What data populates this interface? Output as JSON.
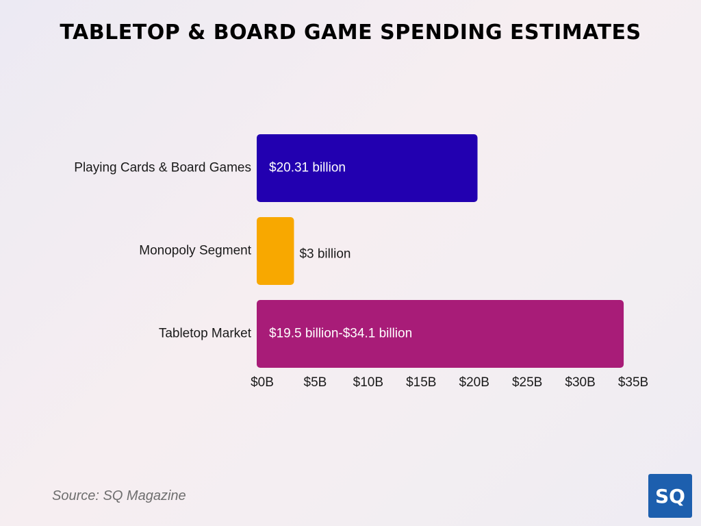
{
  "title": "TABLETOP & BOARD GAME SPENDING ESTIMATES",
  "source": "Source: SQ Magazine",
  "logo_text": "SQ",
  "chart_data": {
    "type": "bar",
    "orientation": "horizontal",
    "categories": [
      "Playing Cards & Board Games",
      "Monopoly Segment",
      "Tabletop Market"
    ],
    "values": [
      20.31,
      3,
      34.1
    ],
    "range_start": [
      null,
      null,
      19.5
    ],
    "data_labels": [
      "$20.31 billion",
      "$3 billion",
      "$19.5 billion-$34.1 billion"
    ],
    "label_inside": [
      true,
      false,
      true
    ],
    "colors": [
      "#2200b0",
      "#f8a800",
      "#a81c78"
    ],
    "xlim": [
      0,
      35
    ],
    "xticks": [
      0,
      5,
      10,
      15,
      20,
      25,
      30,
      35
    ],
    "xtick_labels": [
      "$0B",
      "$5B",
      "$10B",
      "$15B",
      "$20B",
      "$25B",
      "$30B",
      "$35B"
    ],
    "xlabel": "",
    "ylabel": "",
    "grid": false,
    "legend": "none"
  }
}
